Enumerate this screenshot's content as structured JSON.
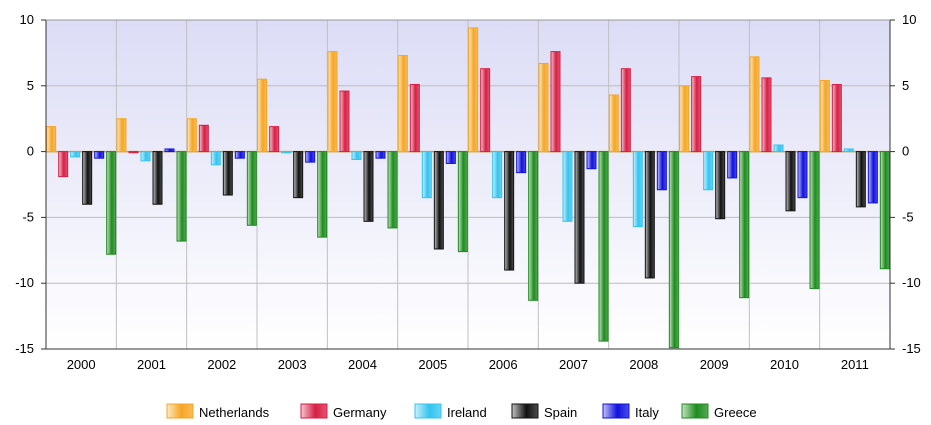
{
  "chart_data": {
    "type": "bar",
    "title": "",
    "xlabel": "",
    "ylabel": "",
    "ylim": [
      -15,
      10
    ],
    "yticks": [
      10,
      5,
      0,
      -5,
      -10,
      -15
    ],
    "grid": true,
    "legend_position": "bottom",
    "categories": [
      "2000",
      "2001",
      "2002",
      "2003",
      "2004",
      "2005",
      "2006",
      "2007",
      "2008",
      "2009",
      "2010",
      "2011"
    ],
    "series": [
      {
        "name": "Netherlands",
        "color": "#f5a623",
        "values": [
          1.9,
          2.5,
          2.5,
          5.5,
          7.6,
          7.3,
          9.4,
          6.7,
          4.3,
          5.0,
          7.2,
          5.4
        ]
      },
      {
        "name": "Germany",
        "color": "#d81e44",
        "values": [
          -1.9,
          0.0,
          2.0,
          1.9,
          4.6,
          5.1,
          6.3,
          7.6,
          6.3,
          5.7,
          5.6,
          5.1
        ]
      },
      {
        "name": "Ireland",
        "color": "#33c4f0",
        "values": [
          -0.4,
          -0.7,
          -1.0,
          0.0,
          -0.6,
          -3.5,
          -3.5,
          -5.3,
          -5.7,
          -2.9,
          0.5,
          0.2
        ]
      },
      {
        "name": "Spain",
        "color": "#111111",
        "values": [
          -4.0,
          -4.0,
          -3.3,
          -3.5,
          -5.3,
          -7.4,
          -9.0,
          -10.0,
          -9.6,
          -5.1,
          -4.5,
          -4.2
        ]
      },
      {
        "name": "Italy",
        "color": "#1010e0",
        "values": [
          -0.5,
          0.2,
          -0.5,
          -0.8,
          -0.5,
          -0.9,
          -1.6,
          -1.3,
          -2.9,
          -2.0,
          -3.5,
          -3.9
        ]
      },
      {
        "name": "Greece",
        "color": "#1d8c1d",
        "values": [
          -7.8,
          -6.8,
          -5.6,
          -6.5,
          -5.8,
          -7.6,
          -11.3,
          -14.4,
          -14.9,
          -11.1,
          -10.4,
          -8.9
        ]
      }
    ]
  }
}
